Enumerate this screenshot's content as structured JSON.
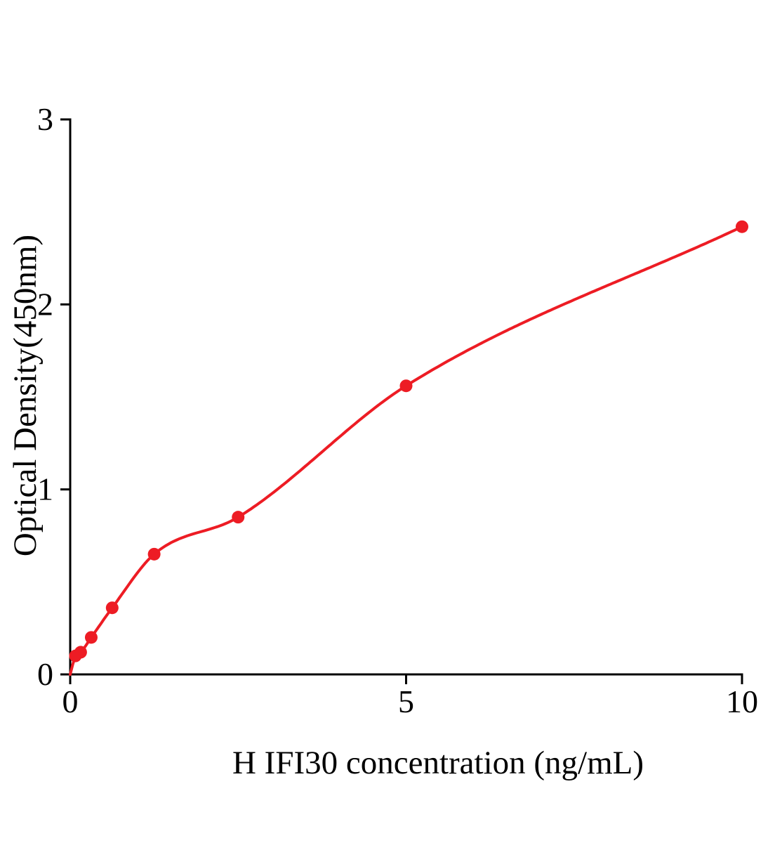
{
  "chart_data": {
    "type": "scatter",
    "title": "",
    "xlabel": "H IFI30 concentration (ng/mL)",
    "ylabel": "Optical Density(450nm)",
    "x": [
      0.078,
      0.156,
      0.313,
      0.625,
      1.25,
      2.5,
      5,
      10
    ],
    "y": [
      0.1,
      0.12,
      0.2,
      0.36,
      0.65,
      0.85,
      1.56,
      2.42
    ],
    "curve_start": [
      0,
      0
    ],
    "xlim": [
      0,
      10
    ],
    "ylim": [
      0,
      3
    ],
    "x_ticks": [
      "0",
      "5",
      "10"
    ],
    "y_ticks": [
      "0",
      "1",
      "2",
      "3"
    ],
    "x_tick_values": [
      0,
      5,
      10
    ],
    "y_tick_values": [
      0,
      1,
      2,
      3
    ],
    "grid": "off",
    "legend": "none",
    "accent_color": "#ed1c24",
    "axis_color": "#000000",
    "point_radius": 9,
    "curve_width": 4,
    "axis_width": 3
  }
}
